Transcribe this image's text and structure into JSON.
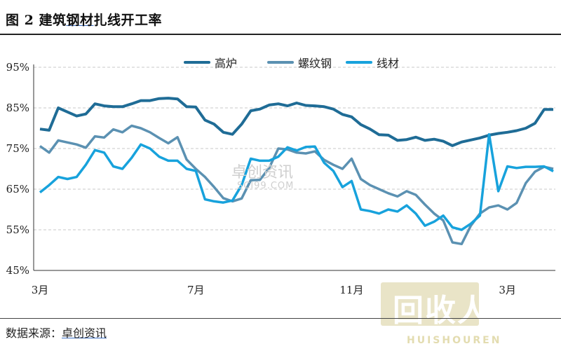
{
  "title_prefix": "图 2 建筑",
  "title_linked": "钢材",
  "title_suffix": "扎线开工率",
  "source_label": "数据来源：",
  "source_link": "卓创资讯",
  "watermark": "卓创资讯",
  "watermark_sub": "SCI99.COM",
  "logo_text": "回收人",
  "logo_sub": "HUISHOUREN",
  "chart_data": {
    "type": "line",
    "ylim": [
      45,
      95
    ],
    "yticks": [
      "95%",
      "85%",
      "75%",
      "65%",
      "55%",
      "45%"
    ],
    "xticks": [
      {
        "label": "3月",
        "index": 0
      },
      {
        "label": "7月",
        "index": 17
      },
      {
        "label": "11月",
        "index": 34
      },
      {
        "label": "3月",
        "index": 51
      }
    ],
    "grid": true,
    "legend": "top-center",
    "series": [
      {
        "name": "高炉",
        "color": "#1f6c96",
        "values": [
          79.8,
          79.5,
          85.0,
          84.0,
          83.0,
          83.5,
          86.0,
          85.5,
          85.3,
          85.3,
          86.0,
          86.8,
          86.8,
          87.3,
          87.4,
          87.2,
          85.3,
          85.2,
          82.0,
          81.0,
          79.0,
          78.5,
          81.0,
          84.3,
          84.7,
          85.7,
          86.0,
          85.5,
          86.2,
          85.6,
          85.5,
          85.3,
          84.7,
          83.4,
          82.8,
          80.9,
          79.8,
          78.4,
          78.3,
          77.0,
          77.2,
          77.8,
          77.0,
          77.3,
          76.8,
          75.7,
          76.6,
          77.1,
          77.6,
          78.3,
          78.7,
          79.0,
          79.4,
          80.0,
          81.2,
          84.6,
          84.6
        ]
      },
      {
        "name": "螺纹钢",
        "color": "#5b91b2",
        "values": [
          75.6,
          74.0,
          77.0,
          76.5,
          76.0,
          75.2,
          78.0,
          77.7,
          79.7,
          79.0,
          80.6,
          80.0,
          79.0,
          77.6,
          76.3,
          77.8,
          72.3,
          70.0,
          68.0,
          65.5,
          62.8,
          62.0,
          62.7,
          67.2,
          67.3,
          70.2,
          75.0,
          74.8,
          74.0,
          73.8,
          74.3,
          72.2,
          71.0,
          70.0,
          72.5,
          67.5,
          66.0,
          65.0,
          64.0,
          63.2,
          64.5,
          63.6,
          61.2,
          59.0,
          57.3,
          51.9,
          51.5,
          56.0,
          59.0,
          60.5,
          61.0,
          60.0,
          61.6,
          66.5,
          69.3,
          70.5,
          70.0
        ]
      },
      {
        "name": "线材",
        "color": "#17a2dc",
        "values": [
          64.2,
          66.0,
          68.0,
          67.5,
          68.0,
          71.0,
          74.6,
          74.0,
          70.6,
          70.0,
          72.7,
          76.0,
          75.0,
          73.0,
          72.0,
          72.0,
          70.0,
          69.5,
          62.5,
          62.0,
          61.7,
          62.2,
          66.0,
          72.5,
          72.0,
          72.0,
          73.0,
          75.3,
          74.5,
          75.4,
          75.5,
          71.5,
          69.5,
          65.5,
          67.0,
          60.0,
          59.6,
          59.0,
          60.0,
          59.5,
          61.0,
          59.0,
          56.0,
          57.0,
          58.5,
          55.6,
          55.0,
          56.5,
          58.5,
          78.5,
          64.5,
          70.6,
          70.2,
          70.5,
          70.5,
          70.6,
          69.4
        ]
      }
    ]
  }
}
